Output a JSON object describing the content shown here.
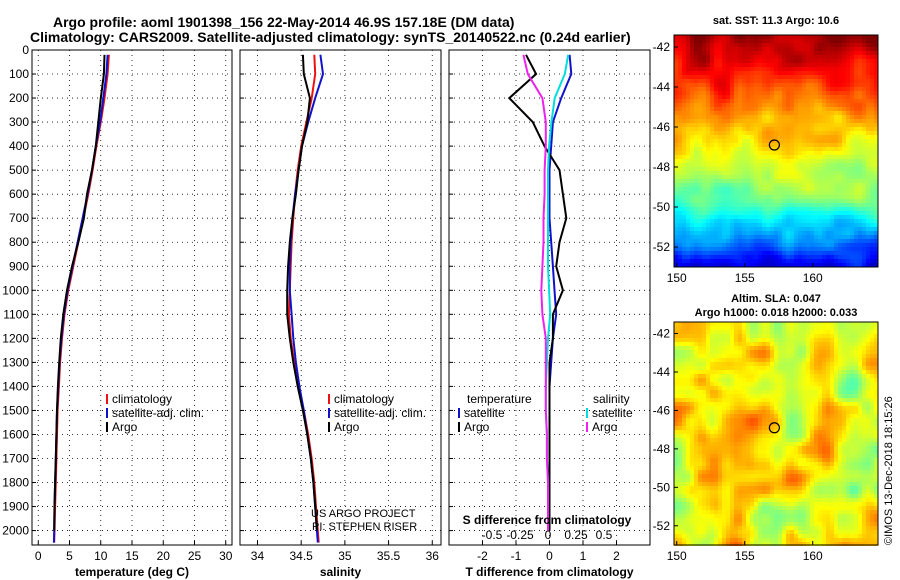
{
  "title_line1": "Argo profile: aoml 1901398_156 22-May-2014 46.9S 157.18E (DM data)",
  "title_line2": "Climatology: CARS2009. Satellite-adjusted climatology: synTS_20140522.nc (0.24d earlier)",
  "credit": "US ARGO PROJECT",
  "credit_pi": "PI: STEPHEN RISER",
  "watermark": "©IMOS 13-Dec-2018 18:15:26",
  "colors": {
    "climatology": "#ee1111",
    "satellite": "#1111cc",
    "argo": "#000000",
    "sat_salinity": "#00dddd",
    "argo_salinity": "#ee22ee"
  },
  "chart_data": [
    {
      "type": "line",
      "id": "temperature",
      "xlabel": "temperature (deg C)",
      "ylim": [
        2060,
        0
      ],
      "xlim": [
        -1,
        31
      ],
      "xticks": [
        "0",
        "5",
        "10",
        "15",
        "20",
        "25",
        "30"
      ],
      "xtick_values": [
        0,
        5,
        10,
        15,
        20,
        25,
        30
      ],
      "yticks": [
        "0",
        "100",
        "200",
        "300",
        "400",
        "500",
        "600",
        "700",
        "800",
        "900",
        "1000",
        "1100",
        "1200",
        "1300",
        "1400",
        "1500",
        "1600",
        "1700",
        "1800",
        "1900",
        "2000"
      ],
      "ytick_values": [
        0,
        100,
        200,
        300,
        400,
        500,
        600,
        700,
        800,
        900,
        1000,
        1100,
        1200,
        1300,
        1400,
        1500,
        1600,
        1700,
        1800,
        1900,
        2000
      ],
      "legend": [
        "climatology",
        "satellite-adj. clim.",
        "Argo"
      ],
      "series": [
        {
          "name": "climatology",
          "color": "#ee1111",
          "x": [
            11.3,
            11.1,
            10.6,
            10.0,
            9.3,
            8.7,
            8.0,
            7.2,
            6.4,
            5.6,
            4.8,
            4.2,
            3.8,
            3.5,
            3.3,
            3.1,
            3.0,
            2.9,
            2.8,
            2.7,
            2.6,
            2.55
          ],
          "y": [
            20,
            100,
            200,
            300,
            400,
            500,
            600,
            700,
            800,
            900,
            1000,
            1100,
            1200,
            1300,
            1400,
            1500,
            1600,
            1700,
            1800,
            1900,
            2000,
            2050
          ]
        },
        {
          "name": "satellite-adj. clim.",
          "color": "#1111cc",
          "x": [
            11.1,
            10.9,
            10.4,
            9.9,
            9.2,
            8.6,
            7.9,
            7.1,
            6.3,
            5.5,
            4.7,
            4.1,
            3.7,
            3.4,
            3.2,
            3.0,
            2.9,
            2.8,
            2.7,
            2.6,
            2.55,
            2.5
          ],
          "y": [
            20,
            100,
            200,
            300,
            400,
            500,
            600,
            700,
            800,
            900,
            1000,
            1100,
            1200,
            1300,
            1400,
            1500,
            1600,
            1700,
            1800,
            1900,
            2000,
            2050
          ]
        },
        {
          "name": "Argo",
          "color": "#000000",
          "x": [
            10.6,
            10.5,
            10.0,
            9.6,
            9.2,
            8.6,
            7.8,
            7.3,
            6.4,
            5.4,
            4.6,
            4.0,
            3.6,
            3.35,
            3.15,
            3.0,
            2.9,
            2.8,
            2.7,
            2.6,
            2.55
          ],
          "y": [
            20,
            100,
            200,
            300,
            400,
            500,
            600,
            700,
            800,
            900,
            1000,
            1100,
            1200,
            1300,
            1400,
            1500,
            1600,
            1700,
            1800,
            1900,
            2000
          ]
        }
      ]
    },
    {
      "type": "line",
      "id": "salinity",
      "xlabel": "salinity",
      "ylim": [
        2060,
        0
      ],
      "xlim": [
        33.8,
        36.1
      ],
      "xticks": [
        "34",
        "34.5",
        "35",
        "35.5",
        "36"
      ],
      "xtick_values": [
        34,
        34.5,
        35,
        35.5,
        36
      ],
      "legend": [
        "climatology",
        "satellite-adj. clim.",
        "Argo"
      ],
      "series": [
        {
          "name": "climatology",
          "color": "#ee1111",
          "x": [
            34.65,
            34.66,
            34.62,
            34.56,
            34.5,
            34.46,
            34.43,
            34.41,
            34.39,
            34.38,
            34.37,
            34.36,
            34.38,
            34.42,
            34.47,
            34.53,
            34.58,
            34.62,
            34.65,
            34.67,
            34.69,
            34.7
          ],
          "y": [
            20,
            100,
            200,
            300,
            400,
            500,
            600,
            700,
            800,
            900,
            1000,
            1100,
            1200,
            1300,
            1400,
            1500,
            1600,
            1700,
            1800,
            1900,
            2000,
            2050
          ]
        },
        {
          "name": "satellite-adj. clim.",
          "color": "#1111cc",
          "x": [
            34.72,
            34.75,
            34.66,
            34.58,
            34.51,
            34.47,
            34.43,
            34.4,
            34.38,
            34.37,
            34.37,
            34.39,
            34.41,
            34.44,
            34.48,
            34.53,
            34.57,
            34.61,
            34.64,
            34.66,
            34.68,
            34.69
          ],
          "y": [
            20,
            100,
            200,
            300,
            400,
            500,
            600,
            700,
            800,
            900,
            1000,
            1100,
            1200,
            1300,
            1400,
            1500,
            1600,
            1700,
            1800,
            1900,
            2000,
            2050
          ]
        },
        {
          "name": "Argo",
          "color": "#000000",
          "x": [
            34.52,
            34.53,
            34.6,
            34.57,
            34.51,
            34.47,
            34.44,
            34.4,
            34.37,
            34.35,
            34.34,
            34.34,
            34.37,
            34.41,
            34.46,
            34.52,
            34.57,
            34.61,
            34.64,
            34.66,
            34.68
          ],
          "y": [
            20,
            100,
            200,
            300,
            400,
            500,
            600,
            700,
            800,
            900,
            1000,
            1100,
            1200,
            1300,
            1400,
            1500,
            1600,
            1700,
            1800,
            1900,
            2000
          ]
        }
      ]
    },
    {
      "type": "line",
      "id": "difference",
      "xlabel": "T difference from climatology",
      "xlabel_top": "S difference from climatology",
      "ylim": [
        2060,
        0
      ],
      "xlim": [
        -3,
        3
      ],
      "xticks": [
        "-2",
        "-1",
        "0",
        "1",
        "2"
      ],
      "xtick_values": [
        -2,
        -1,
        0,
        1,
        2
      ],
      "s_ticks": [
        "-0.5",
        "-0.25",
        "0",
        "0.25",
        "0.5"
      ],
      "s_tick_values": [
        -0.5,
        -0.25,
        0,
        0.25,
        0.5
      ],
      "legend_t_title": "temperature",
      "legend_t": [
        "satellite",
        "Argo"
      ],
      "legend_s_title": "salinity",
      "legend_s": [
        "satellite",
        "Argo"
      ],
      "series": [
        {
          "name": "satellite",
          "color": "#1111cc",
          "x": [
            0.6,
            0.65,
            0.35,
            0.1,
            0.05,
            0.0,
            0.0,
            0.0,
            0.05,
            0.1,
            0.15,
            0.2,
            0.1,
            0.05,
            0.0,
            0.0,
            0.0,
            0.0,
            0.0,
            0.0,
            0.0
          ],
          "y": [
            20,
            100,
            200,
            300,
            400,
            500,
            600,
            700,
            800,
            900,
            1000,
            1100,
            1200,
            1300,
            1400,
            1500,
            1600,
            1700,
            1800,
            1900,
            2000
          ]
        },
        {
          "name": "Argo",
          "color": "#000000",
          "x": [
            -0.7,
            -0.4,
            -1.2,
            -0.5,
            -0.15,
            0.3,
            0.4,
            0.5,
            0.3,
            0.2,
            0.4,
            0.1,
            0.1,
            0.0,
            0.0,
            0.0,
            0.0,
            0.0,
            0.0,
            0.0,
            0.0
          ],
          "y": [
            20,
            100,
            200,
            300,
            400,
            500,
            600,
            700,
            800,
            900,
            1000,
            1100,
            1200,
            1300,
            1400,
            1500,
            1600,
            1700,
            1800,
            1900,
            2000
          ]
        },
        {
          "name": "satellite",
          "color": "#00dddd",
          "quantity": "salinity",
          "x": [
            0.18,
            0.15,
            0.06,
            0.03,
            0.01,
            0.0,
            0.0,
            0.0,
            0.0,
            0.0,
            0.01,
            0.02,
            0.0,
            -0.01,
            -0.02,
            -0.02,
            -0.01,
            -0.01,
            0.0,
            0.0,
            0.0
          ],
          "y": [
            20,
            100,
            200,
            300,
            400,
            500,
            600,
            700,
            800,
            900,
            1000,
            1100,
            1200,
            1300,
            1400,
            1500,
            1600,
            1700,
            1800,
            1900,
            2000
          ]
        },
        {
          "name": "Argo",
          "color": "#ee22ee",
          "quantity": "salinity",
          "x": [
            -0.22,
            -0.18,
            -0.05,
            -0.02,
            -0.02,
            -0.03,
            -0.03,
            -0.04,
            -0.04,
            -0.05,
            -0.06,
            -0.05,
            -0.02,
            -0.02,
            -0.02,
            -0.02,
            -0.01,
            -0.01,
            0.0,
            0.0,
            0.0
          ],
          "y": [
            20,
            100,
            200,
            300,
            400,
            500,
            600,
            700,
            800,
            900,
            1000,
            1100,
            1200,
            1300,
            1400,
            1500,
            1600,
            1700,
            1800,
            1900,
            2000
          ]
        }
      ]
    },
    {
      "type": "heatmap",
      "id": "sst_map",
      "title": "sat. SST: 11.3 Argo: 10.6",
      "xticks": [
        "150",
        "155",
        "160"
      ],
      "xtick_values": [
        150,
        155,
        160
      ],
      "yticks": [
        "-42",
        "-44",
        "-46",
        "-48",
        "-50",
        "-52"
      ],
      "ytick_values": [
        -42,
        -44,
        -46,
        -48,
        -50,
        -52
      ],
      "xlim": [
        149.8,
        164.8
      ],
      "ylim": [
        -53,
        -41.4
      ],
      "marker": {
        "lon": 157.18,
        "lat": -46.9
      }
    },
    {
      "type": "heatmap",
      "id": "sla_map",
      "title": "Altim. SLA: 0.047",
      "subtitle": "Argo h1000: 0.018 h2000: 0.033",
      "xticks": [
        "150",
        "155",
        "160"
      ],
      "xtick_values": [
        150,
        155,
        160
      ],
      "yticks": [
        "-42",
        "-44",
        "-46",
        "-48",
        "-50",
        "-52"
      ],
      "ytick_values": [
        -42,
        -44,
        -46,
        -48,
        -50,
        -52
      ],
      "xlim": [
        149.8,
        164.8
      ],
      "ylim": [
        -53,
        -41.4
      ],
      "marker": {
        "lon": 157.18,
        "lat": -46.9
      }
    }
  ]
}
